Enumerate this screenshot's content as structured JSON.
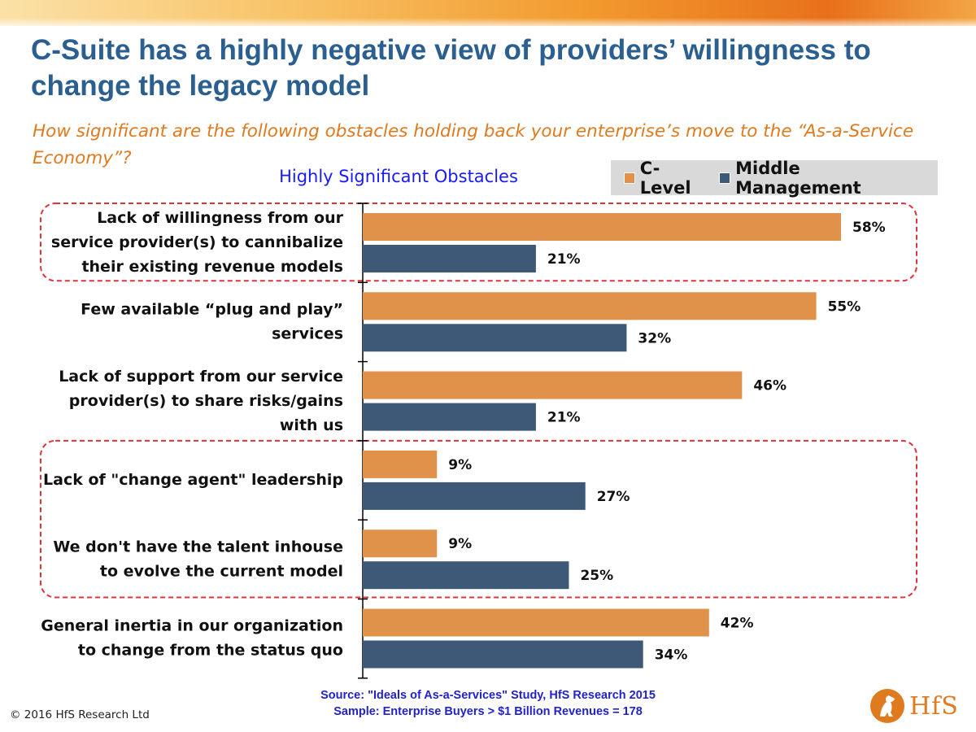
{
  "slide": {
    "title": "C-Suite has a highly negative view of providers’ willingness to change the legacy model",
    "question": "How significant are the following obstacles holding back your enterprise’s move to the “As-a-Service Economy”?",
    "source_line1": "Source: \"Ideals of As-a-Services\" Study, HfS Research 2015",
    "source_line2": "Sample: Enterprise Buyers > $1 Billion Revenues = 178",
    "copyright": "© 2016 HfS Research Ltd",
    "logo_text": "HfS"
  },
  "colors": {
    "c_level": "#e0924a",
    "middle_management": "#3e5878",
    "highlight_box": "#e0323a",
    "title": "#2b5f8f",
    "question": "#e07a1f"
  },
  "chart_data": {
    "type": "bar",
    "orientation": "horizontal",
    "title": "Highly Significant Obstacles",
    "categories": [
      [
        "Lack of willingness from our",
        "service provider(s) to cannibalize",
        "their existing revenue models"
      ],
      [
        "Few available “plug and play”",
        "services"
      ],
      [
        "Lack of support from our service",
        "provider(s) to share risks/gains",
        "with us"
      ],
      [
        "Lack of \"change agent\" leadership"
      ],
      [
        "We don't have the talent inhouse",
        "to evolve the current model"
      ],
      [
        "General inertia in our organization",
        "to change from the status quo"
      ]
    ],
    "series": [
      {
        "name": "C-Level",
        "values": [
          58,
          55,
          46,
          9,
          9,
          42
        ]
      },
      {
        "name": "Middle Management",
        "values": [
          21,
          32,
          21,
          27,
          25,
          34
        ]
      }
    ],
    "value_suffix": "%",
    "highlighted_groups": [
      [
        0
      ],
      [
        3,
        4
      ]
    ],
    "legend_position": "top-right",
    "grid": false
  }
}
